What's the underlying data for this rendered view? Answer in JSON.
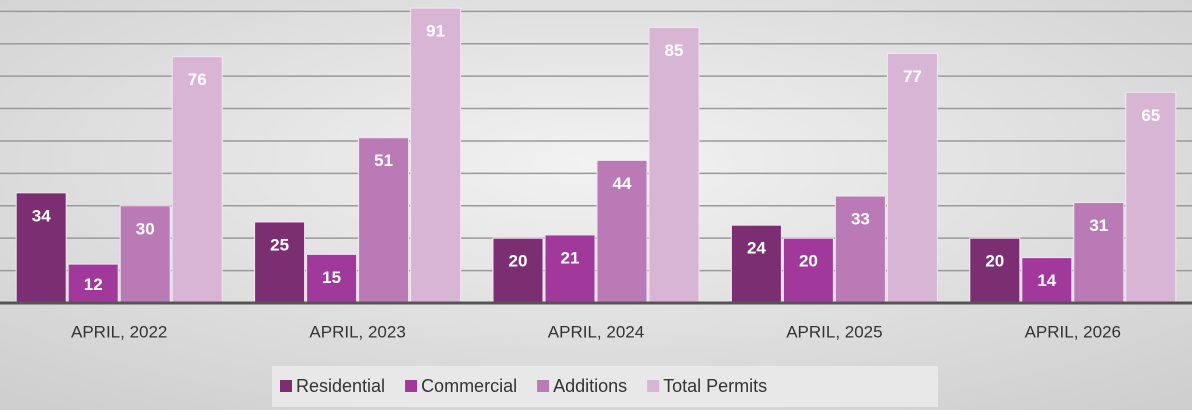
{
  "chart_data": {
    "type": "bar",
    "categories": [
      "APRIL, 2022",
      "APRIL, 2023",
      "APRIL, 2024",
      "APRIL, 2025",
      "APRIL, 2026"
    ],
    "series": [
      {
        "name": "Residential",
        "color": "#7c2e72",
        "values": [
          34,
          25,
          20,
          24,
          20
        ]
      },
      {
        "name": "Commercial",
        "color": "#a1389c",
        "values": [
          12,
          15,
          21,
          20,
          14
        ]
      },
      {
        "name": "Additions",
        "color": "#b97ab5",
        "values": [
          30,
          51,
          44,
          33,
          31
        ]
      },
      {
        "name": "Total Permits",
        "color": "#d8b4d5",
        "values": [
          76,
          91,
          85,
          77,
          65
        ]
      }
    ],
    "ylim": [
      0,
      93.5
    ],
    "yticks": [
      0,
      10,
      20,
      30,
      40,
      50,
      60,
      70,
      80,
      90
    ],
    "grid": true,
    "legend": "bottom"
  }
}
